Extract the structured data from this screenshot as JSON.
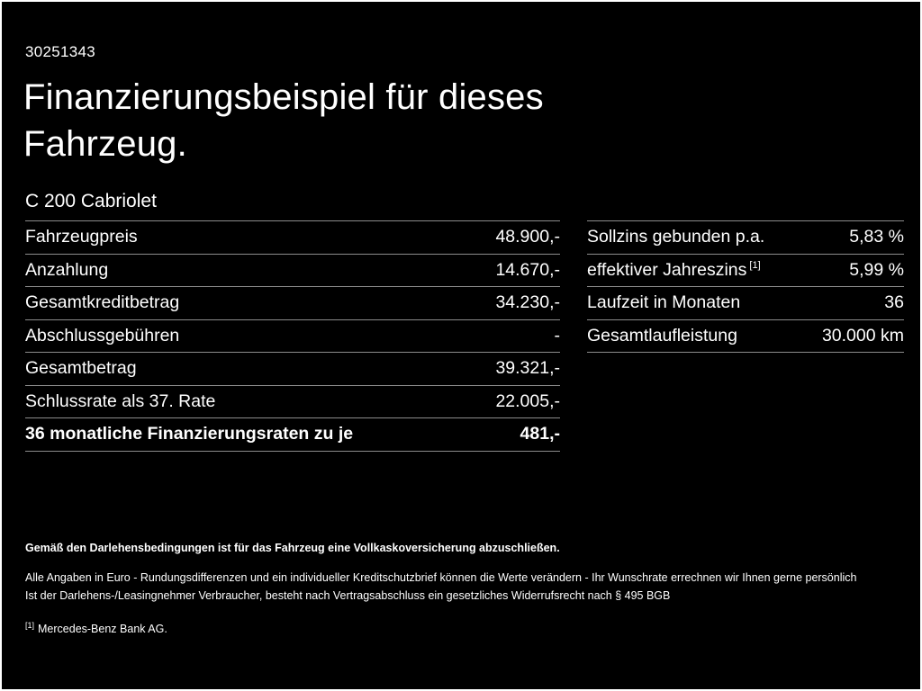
{
  "page": {
    "id_number": "30251343",
    "title_line1": "Finanzierungsbeispiel für dieses",
    "title_line2": "Fahrzeug.",
    "vehicle": "C 200 Cabriolet"
  },
  "left_table": {
    "rows": [
      {
        "label": "Fahrzeugpreis",
        "value": "48.900,-"
      },
      {
        "label": "Anzahlung",
        "value": "14.670,-"
      },
      {
        "label": "Gesamtkreditbetrag",
        "value": "34.230,-"
      },
      {
        "label": "Abschlussgebühren",
        "value": "-"
      },
      {
        "label": "Gesamtbetrag",
        "value": "39.321,-"
      },
      {
        "label": "Schlussrate als 37. Rate",
        "value": "22.005,-"
      },
      {
        "label": "36 monatliche Finanzierungsraten zu je",
        "value": "481,-"
      }
    ]
  },
  "right_table": {
    "rows": [
      {
        "label": "Sollzins gebunden p.a.",
        "superscript": "",
        "value": "5,83 %"
      },
      {
        "label": "effektiver Jahreszins",
        "superscript": "[1]",
        "value": "5,99 %"
      },
      {
        "label": "Laufzeit in Monaten",
        "superscript": "",
        "value": "36"
      },
      {
        "label": "Gesamtlaufleistung",
        "superscript": "",
        "value": "30.000 km"
      }
    ]
  },
  "footer": {
    "line1": "Gemäß den Darlehensbedingungen ist für das Fahrzeug eine Vollkaskoversicherung abzuschließen.",
    "line2": "Alle Angaben in Euro - Rundungsdifferenzen und ein individueller Kreditschutzbrief können die Werte verändern - Ihr Wunschrate errechnen wir Ihnen gerne persönlich",
    "line3": "Ist der Darlehens-/Leasingnehmer Verbraucher, besteht nach Vertragsabschluss ein gesetzliches Widerrufsrecht nach § 495 BGB",
    "footnote_marker": "[1]",
    "footnote_text": "Mercedes-Benz Bank AG."
  },
  "colors": {
    "background": "#000000",
    "text": "#ffffff",
    "divider": "#8c8c8c"
  }
}
